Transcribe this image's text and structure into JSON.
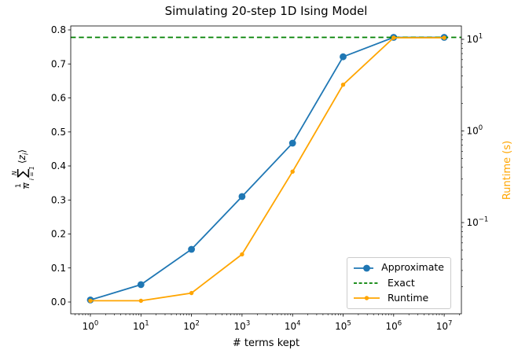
{
  "chart_data": {
    "type": "line",
    "title": "Simulating 20-step 1D Ising Model",
    "xlabel": "# terms kept",
    "ylabel_left": "(1/N) ∑_{i=1}^{N} ⟨z_i⟩",
    "ylabel_left_parts": {
      "frac_num": "1",
      "frac_den": "N",
      "sum_upper": "N",
      "sum_symbol": "∑",
      "sum_lower": "i = 1",
      "expr_open": "⟨",
      "expr_var": "z",
      "expr_sub": "i",
      "expr_close": "⟩"
    },
    "ylabel_right": "Runtime (s)",
    "x": [
      1,
      10,
      100,
      1000,
      10000,
      100000,
      1000000,
      10000000
    ],
    "x_axis": {
      "scale": "log",
      "tick_exponents": [
        0,
        1,
        2,
        3,
        4,
        5,
        6,
        7
      ],
      "lim_log10": [
        -0.389,
        7.34
      ]
    },
    "left_axis": {
      "ticks": [
        0.0,
        0.1,
        0.2,
        0.3,
        0.4,
        0.5,
        0.6,
        0.7,
        0.8
      ],
      "lim": [
        -0.0347,
        0.8116
      ]
    },
    "right_axis": {
      "scale": "log",
      "tick_exponents": [
        1,
        0,
        -1
      ],
      "lim_log10": [
        -1.996,
        1.146
      ],
      "label_color": "#ffa500"
    },
    "grid": false,
    "legend_location": "lower right",
    "series": [
      {
        "name": "Approximate",
        "axis": "left",
        "color": "#1f77b4",
        "line": "solid",
        "marker": "circle",
        "marker_size": 4.4,
        "values": [
          0.006,
          0.051,
          0.155,
          0.31,
          0.467,
          0.721,
          0.778,
          0.778
        ]
      },
      {
        "name": "Exact",
        "axis": "left",
        "color": "#008000",
        "line": "dashed",
        "marker": "none",
        "hline": 0.778
      },
      {
        "name": "Runtime",
        "axis": "right",
        "color": "#ffa500",
        "line": "solid",
        "marker": "dot",
        "marker_size": 2.7,
        "values": [
          0.014,
          0.014,
          0.017,
          0.045,
          0.36,
          3.2,
          10.4,
          10.4
        ]
      }
    ]
  }
}
